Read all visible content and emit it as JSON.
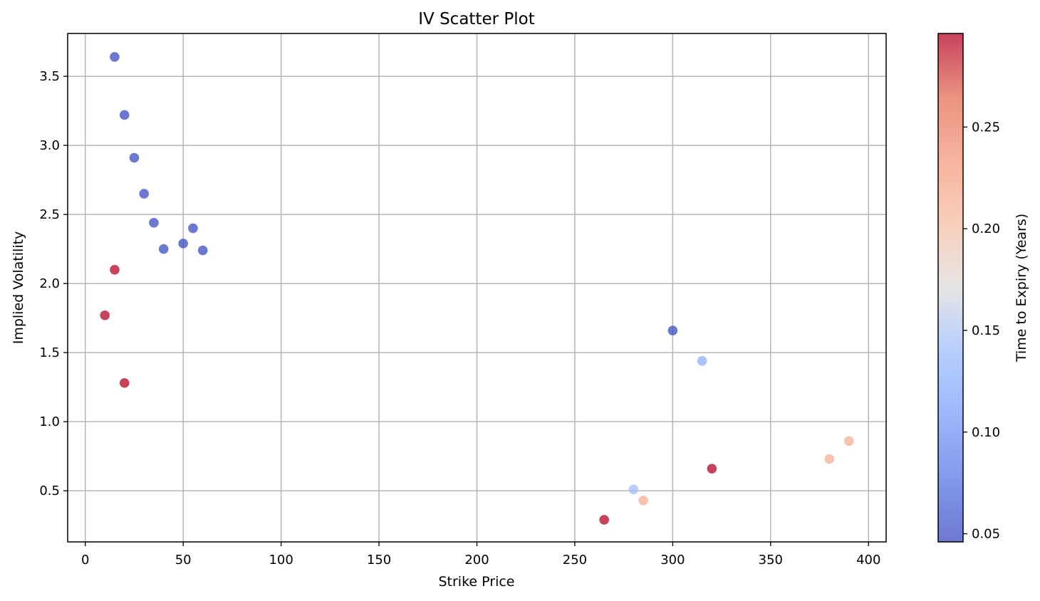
{
  "chart_data": {
    "type": "scatter",
    "title": "IV Scatter Plot",
    "xlabel": "Strike Price",
    "ylabel": "Implied Volatility",
    "xlim": [
      -9,
      409
    ],
    "ylim": [
      0.13,
      3.81
    ],
    "xticks": [
      0,
      50,
      100,
      150,
      200,
      250,
      300,
      350,
      400
    ],
    "yticks": [
      0.5,
      1.0,
      1.5,
      2.0,
      2.5,
      3.0,
      3.5
    ],
    "xtick_labels": [
      "0",
      "50",
      "100",
      "150",
      "200",
      "250",
      "300",
      "350",
      "400"
    ],
    "ytick_labels": [
      "0.5",
      "1.0",
      "1.5",
      "2.0",
      "2.5",
      "3.0",
      "3.5"
    ],
    "grid": true,
    "colormap": "coolwarm",
    "point_alpha": 0.75,
    "colorbar": {
      "label": "Time to Expiry (Years)",
      "range": [
        0.046,
        0.296
      ],
      "ticks": [
        0.05,
        0.1,
        0.15,
        0.2,
        0.25
      ],
      "tick_labels": [
        "0.05",
        "0.10",
        "0.15",
        "0.20",
        "0.25"
      ]
    },
    "points": [
      {
        "x": 15,
        "y": 3.64,
        "c": 0.046
      },
      {
        "x": 20,
        "y": 3.22,
        "c": 0.046
      },
      {
        "x": 25,
        "y": 2.91,
        "c": 0.046
      },
      {
        "x": 30,
        "y": 2.65,
        "c": 0.046
      },
      {
        "x": 35,
        "y": 2.44,
        "c": 0.046
      },
      {
        "x": 40,
        "y": 2.25,
        "c": 0.046
      },
      {
        "x": 50,
        "y": 2.29,
        "c": 0.046
      },
      {
        "x": 55,
        "y": 2.4,
        "c": 0.046
      },
      {
        "x": 60,
        "y": 2.24,
        "c": 0.046
      },
      {
        "x": 15,
        "y": 2.1,
        "c": 0.296
      },
      {
        "x": 10,
        "y": 1.77,
        "c": 0.296
      },
      {
        "x": 20,
        "y": 1.28,
        "c": 0.296
      },
      {
        "x": 300,
        "y": 1.66,
        "c": 0.046
      },
      {
        "x": 315,
        "y": 1.44,
        "c": 0.123
      },
      {
        "x": 280,
        "y": 0.51,
        "c": 0.14
      },
      {
        "x": 285,
        "y": 0.43,
        "c": 0.216
      },
      {
        "x": 265,
        "y": 0.29,
        "c": 0.296
      },
      {
        "x": 320,
        "y": 0.66,
        "c": 0.296
      },
      {
        "x": 380,
        "y": 0.73,
        "c": 0.216
      },
      {
        "x": 390,
        "y": 0.86,
        "c": 0.216
      }
    ]
  }
}
